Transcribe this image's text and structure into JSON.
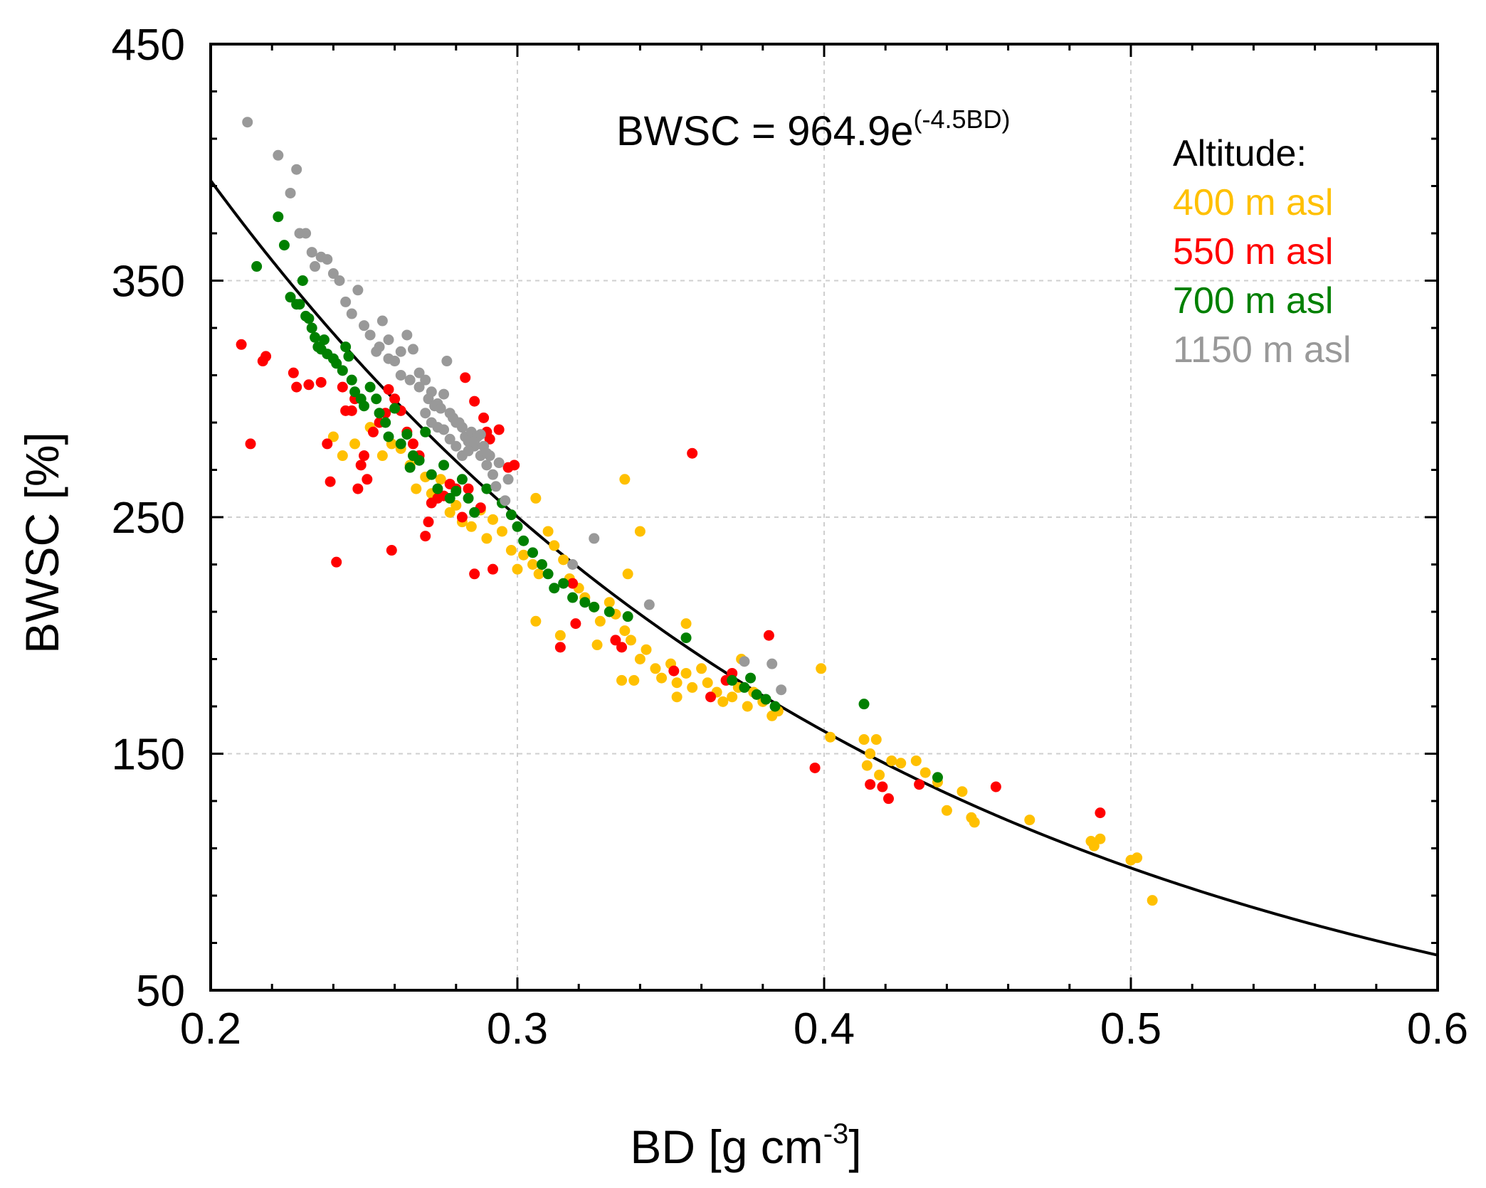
{
  "chart_data": {
    "type": "scatter",
    "title": "",
    "xlabel": "BD [g cm",
    "xlabel_sup": "-3",
    "xlabel_end": "]",
    "ylabel": "BWSC [%]",
    "xlim": [
      0.2,
      0.6
    ],
    "ylim": [
      50,
      450
    ],
    "x_ticks": [
      0.2,
      0.3,
      0.4,
      0.5,
      0.6
    ],
    "x_tick_labels": [
      "0.2",
      "0.3",
      "0.4",
      "0.5",
      "0.6"
    ],
    "y_ticks": [
      50,
      150,
      250,
      350,
      450
    ],
    "y_tick_labels": [
      "50",
      "150",
      "250",
      "350",
      "450"
    ],
    "grid": true,
    "equation": {
      "text": "BWSC = 964.9e",
      "superscript": "(-4.5BD)"
    },
    "fit": {
      "type": "exponential",
      "a": 964.9,
      "b": -4.5
    },
    "legend": {
      "title": "Altitude:",
      "position": "top-right"
    },
    "series": [
      {
        "name": "400 m asl",
        "color": "#FFC000",
        "points": [
          [
            0.24,
            284
          ],
          [
            0.243,
            276
          ],
          [
            0.247,
            281
          ],
          [
            0.252,
            288
          ],
          [
            0.256,
            276
          ],
          [
            0.259,
            281
          ],
          [
            0.262,
            279
          ],
          [
            0.265,
            272
          ],
          [
            0.267,
            262
          ],
          [
            0.27,
            267
          ],
          [
            0.272,
            260
          ],
          [
            0.275,
            266
          ],
          [
            0.278,
            252
          ],
          [
            0.28,
            255
          ],
          [
            0.282,
            248
          ],
          [
            0.285,
            246
          ],
          [
            0.288,
            253
          ],
          [
            0.29,
            241
          ],
          [
            0.292,
            249
          ],
          [
            0.295,
            244
          ],
          [
            0.298,
            236
          ],
          [
            0.3,
            228
          ],
          [
            0.302,
            234
          ],
          [
            0.305,
            230
          ],
          [
            0.307,
            226
          ],
          [
            0.31,
            244
          ],
          [
            0.312,
            238
          ],
          [
            0.315,
            232
          ],
          [
            0.317,
            224
          ],
          [
            0.32,
            220
          ],
          [
            0.322,
            216
          ],
          [
            0.325,
            212
          ],
          [
            0.327,
            206
          ],
          [
            0.33,
            214
          ],
          [
            0.332,
            209
          ],
          [
            0.335,
            202
          ],
          [
            0.337,
            198
          ],
          [
            0.34,
            190
          ],
          [
            0.342,
            194
          ],
          [
            0.345,
            186
          ],
          [
            0.347,
            182
          ],
          [
            0.35,
            188
          ],
          [
            0.352,
            180
          ],
          [
            0.355,
            184
          ],
          [
            0.357,
            178
          ],
          [
            0.36,
            186
          ],
          [
            0.362,
            180
          ],
          [
            0.365,
            176
          ],
          [
            0.367,
            172
          ],
          [
            0.37,
            174
          ],
          [
            0.372,
            178
          ],
          [
            0.375,
            170
          ],
          [
            0.377,
            176
          ],
          [
            0.38,
            172
          ],
          [
            0.383,
            166
          ],
          [
            0.385,
            168
          ],
          [
            0.306,
            206
          ],
          [
            0.314,
            200
          ],
          [
            0.326,
            196
          ],
          [
            0.334,
            181
          ],
          [
            0.338,
            181
          ],
          [
            0.352,
            174
          ],
          [
            0.306,
            258
          ],
          [
            0.335,
            266
          ],
          [
            0.34,
            244
          ],
          [
            0.336,
            226
          ],
          [
            0.355,
            205
          ],
          [
            0.373,
            190
          ],
          [
            0.399,
            186
          ],
          [
            0.402,
            157
          ],
          [
            0.413,
            156
          ],
          [
            0.415,
            150
          ],
          [
            0.417,
            156
          ],
          [
            0.414,
            145
          ],
          [
            0.418,
            141
          ],
          [
            0.422,
            147
          ],
          [
            0.425,
            146
          ],
          [
            0.43,
            147
          ],
          [
            0.433,
            142
          ],
          [
            0.437,
            138
          ],
          [
            0.44,
            126
          ],
          [
            0.445,
            134
          ],
          [
            0.448,
            123
          ],
          [
            0.449,
            121
          ],
          [
            0.467,
            122
          ],
          [
            0.487,
            113
          ],
          [
            0.488,
            111
          ],
          [
            0.49,
            114
          ],
          [
            0.5,
            105
          ],
          [
            0.502,
            106
          ],
          [
            0.507,
            88
          ]
        ]
      },
      {
        "name": "550 m asl",
        "color": "#FF0000",
        "points": [
          [
            0.21,
            323
          ],
          [
            0.213,
            281
          ],
          [
            0.217,
            316
          ],
          [
            0.218,
            318
          ],
          [
            0.227,
            311
          ],
          [
            0.228,
            305
          ],
          [
            0.232,
            306
          ],
          [
            0.236,
            307
          ],
          [
            0.238,
            281
          ],
          [
            0.239,
            265
          ],
          [
            0.241,
            231
          ],
          [
            0.243,
            305
          ],
          [
            0.244,
            295
          ],
          [
            0.246,
            295
          ],
          [
            0.247,
            300
          ],
          [
            0.249,
            272
          ],
          [
            0.248,
            262
          ],
          [
            0.25,
            276
          ],
          [
            0.251,
            266
          ],
          [
            0.253,
            286
          ],
          [
            0.255,
            290
          ],
          [
            0.257,
            294
          ],
          [
            0.258,
            304
          ],
          [
            0.26,
            300
          ],
          [
            0.262,
            295
          ],
          [
            0.259,
            236
          ],
          [
            0.264,
            286
          ],
          [
            0.266,
            281
          ],
          [
            0.268,
            276
          ],
          [
            0.27,
            242
          ],
          [
            0.271,
            248
          ],
          [
            0.272,
            256
          ],
          [
            0.274,
            258
          ],
          [
            0.276,
            259
          ],
          [
            0.278,
            264
          ],
          [
            0.28,
            262
          ],
          [
            0.282,
            250
          ],
          [
            0.284,
            262
          ],
          [
            0.286,
            226
          ],
          [
            0.288,
            254
          ],
          [
            0.29,
            286
          ],
          [
            0.292,
            228
          ],
          [
            0.294,
            287
          ],
          [
            0.297,
            271
          ],
          [
            0.283,
            309
          ],
          [
            0.286,
            299
          ],
          [
            0.289,
            292
          ],
          [
            0.291,
            283
          ],
          [
            0.299,
            272
          ],
          [
            0.314,
            195
          ],
          [
            0.318,
            222
          ],
          [
            0.319,
            205
          ],
          [
            0.332,
            198
          ],
          [
            0.334,
            195
          ],
          [
            0.351,
            185
          ],
          [
            0.357,
            277
          ],
          [
            0.363,
            174
          ],
          [
            0.368,
            181
          ],
          [
            0.37,
            184
          ],
          [
            0.382,
            200
          ],
          [
            0.397,
            144
          ],
          [
            0.415,
            137
          ],
          [
            0.419,
            136
          ],
          [
            0.421,
            131
          ],
          [
            0.431,
            137
          ],
          [
            0.456,
            136
          ],
          [
            0.49,
            125
          ]
        ]
      },
      {
        "name": "700 m asl",
        "color": "#008000",
        "points": [
          [
            0.215,
            356
          ],
          [
            0.222,
            377
          ],
          [
            0.224,
            365
          ],
          [
            0.226,
            343
          ],
          [
            0.228,
            340
          ],
          [
            0.229,
            340
          ],
          [
            0.23,
            350
          ],
          [
            0.231,
            335
          ],
          [
            0.232,
            334
          ],
          [
            0.233,
            330
          ],
          [
            0.234,
            326
          ],
          [
            0.235,
            322
          ],
          [
            0.236,
            321
          ],
          [
            0.237,
            325
          ],
          [
            0.238,
            319
          ],
          [
            0.24,
            317
          ],
          [
            0.241,
            315
          ],
          [
            0.243,
            312
          ],
          [
            0.244,
            322
          ],
          [
            0.245,
            318
          ],
          [
            0.246,
            308
          ],
          [
            0.247,
            303
          ],
          [
            0.249,
            300
          ],
          [
            0.25,
            297
          ],
          [
            0.252,
            305
          ],
          [
            0.254,
            300
          ],
          [
            0.255,
            294
          ],
          [
            0.257,
            290
          ],
          [
            0.258,
            284
          ],
          [
            0.26,
            296
          ],
          [
            0.262,
            281
          ],
          [
            0.264,
            285
          ],
          [
            0.265,
            271
          ],
          [
            0.266,
            276
          ],
          [
            0.268,
            274
          ],
          [
            0.27,
            286
          ],
          [
            0.272,
            268
          ],
          [
            0.274,
            262
          ],
          [
            0.276,
            272
          ],
          [
            0.278,
            258
          ],
          [
            0.28,
            261
          ],
          [
            0.282,
            266
          ],
          [
            0.284,
            258
          ],
          [
            0.286,
            252
          ],
          [
            0.29,
            262
          ],
          [
            0.295,
            256
          ],
          [
            0.298,
            251
          ],
          [
            0.3,
            246
          ],
          [
            0.302,
            240
          ],
          [
            0.305,
            235
          ],
          [
            0.308,
            230
          ],
          [
            0.31,
            226
          ],
          [
            0.312,
            220
          ],
          [
            0.315,
            222
          ],
          [
            0.318,
            216
          ],
          [
            0.322,
            214
          ],
          [
            0.325,
            212
          ],
          [
            0.33,
            210
          ],
          [
            0.336,
            208
          ],
          [
            0.355,
            199
          ],
          [
            0.37,
            181
          ],
          [
            0.374,
            178
          ],
          [
            0.376,
            182
          ],
          [
            0.378,
            175
          ],
          [
            0.381,
            173
          ],
          [
            0.384,
            170
          ],
          [
            0.413,
            171
          ],
          [
            0.437,
            140
          ]
        ]
      },
      {
        "name": "1150 m asl",
        "color": "#999999",
        "points": [
          [
            0.212,
            417
          ],
          [
            0.222,
            403
          ],
          [
            0.226,
            387
          ],
          [
            0.228,
            397
          ],
          [
            0.229,
            370
          ],
          [
            0.231,
            370
          ],
          [
            0.233,
            362
          ],
          [
            0.234,
            356
          ],
          [
            0.236,
            360
          ],
          [
            0.238,
            359
          ],
          [
            0.24,
            353
          ],
          [
            0.242,
            350
          ],
          [
            0.244,
            341
          ],
          [
            0.246,
            336
          ],
          [
            0.248,
            346
          ],
          [
            0.25,
            331
          ],
          [
            0.252,
            327
          ],
          [
            0.254,
            320
          ],
          [
            0.256,
            333
          ],
          [
            0.258,
            325
          ],
          [
            0.26,
            316
          ],
          [
            0.262,
            320
          ],
          [
            0.264,
            327
          ],
          [
            0.266,
            321
          ],
          [
            0.268,
            311
          ],
          [
            0.27,
            308
          ],
          [
            0.272,
            303
          ],
          [
            0.274,
            298
          ],
          [
            0.276,
            302
          ],
          [
            0.278,
            294
          ],
          [
            0.28,
            290
          ],
          [
            0.282,
            288
          ],
          [
            0.284,
            282
          ],
          [
            0.286,
            280
          ],
          [
            0.288,
            276
          ],
          [
            0.29,
            272
          ],
          [
            0.292,
            268
          ],
          [
            0.293,
            263
          ],
          [
            0.296,
            257
          ],
          [
            0.255,
            322
          ],
          [
            0.258,
            317
          ],
          [
            0.262,
            310
          ],
          [
            0.265,
            308
          ],
          [
            0.268,
            305
          ],
          [
            0.271,
            300
          ],
          [
            0.273,
            297
          ],
          [
            0.275,
            296
          ],
          [
            0.277,
            316
          ],
          [
            0.279,
            292
          ],
          [
            0.281,
            290
          ],
          [
            0.283,
            284
          ],
          [
            0.285,
            286
          ],
          [
            0.287,
            284
          ],
          [
            0.289,
            280
          ],
          [
            0.291,
            276
          ],
          [
            0.294,
            273
          ],
          [
            0.297,
            266
          ],
          [
            0.27,
            294
          ],
          [
            0.272,
            290
          ],
          [
            0.274,
            288
          ],
          [
            0.276,
            287
          ],
          [
            0.278,
            283
          ],
          [
            0.28,
            280
          ],
          [
            0.282,
            276
          ],
          [
            0.284,
            278
          ],
          [
            0.286,
            282
          ],
          [
            0.288,
            285
          ],
          [
            0.29,
            277
          ],
          [
            0.325,
            241
          ],
          [
            0.318,
            230
          ],
          [
            0.343,
            213
          ],
          [
            0.374,
            189
          ],
          [
            0.383,
            188
          ],
          [
            0.386,
            177
          ]
        ]
      }
    ]
  }
}
